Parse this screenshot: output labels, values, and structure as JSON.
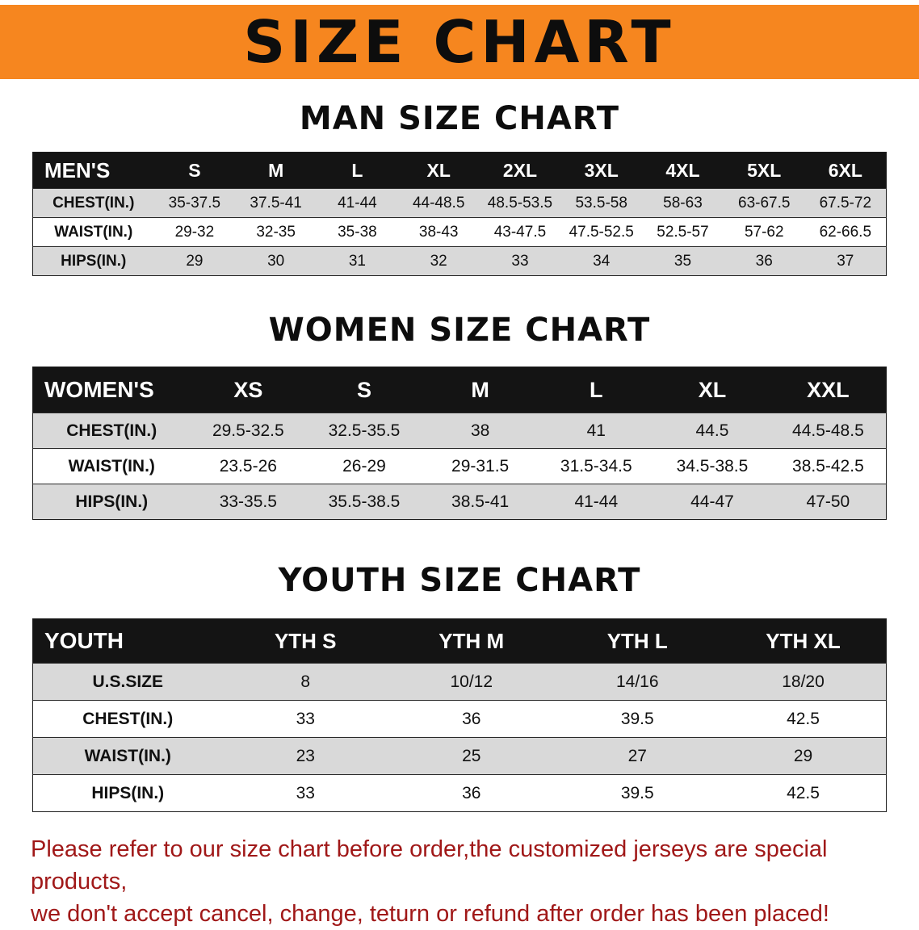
{
  "banner": {
    "title": "SIZE CHART",
    "bg_color": "#F6861F"
  },
  "sections": [
    {
      "heading": "MAN SIZE CHART",
      "table": {
        "label": "MEN'S",
        "columns": [
          "S",
          "M",
          "L",
          "XL",
          "2XL",
          "3XL",
          "4XL",
          "5XL",
          "6XL"
        ],
        "rows": [
          {
            "label": "CHEST(IN.)",
            "values": [
              "35-37.5",
              "37.5-41",
              "41-44",
              "44-48.5",
              "48.5-53.5",
              "53.5-58",
              "58-63",
              "63-67.5",
              "67.5-72"
            ]
          },
          {
            "label": "WAIST(IN.)",
            "values": [
              "29-32",
              "32-35",
              "35-38",
              "38-43",
              "43-47.5",
              "47.5-52.5",
              "52.5-57",
              "57-62",
              "62-66.5"
            ]
          },
          {
            "label": "HIPS(IN.)",
            "values": [
              "29",
              "30",
              "31",
              "32",
              "33",
              "34",
              "35",
              "36",
              "37"
            ]
          }
        ]
      }
    },
    {
      "heading": "WOMEN SIZE CHART",
      "table": {
        "label": "WOMEN'S",
        "columns": [
          "XS",
          "S",
          "M",
          "L",
          "XL",
          "XXL"
        ],
        "rows": [
          {
            "label": "CHEST(IN.)",
            "values": [
              "29.5-32.5",
              "32.5-35.5",
              "38",
              "41",
              "44.5",
              "44.5-48.5"
            ]
          },
          {
            "label": "WAIST(IN.)",
            "values": [
              "23.5-26",
              "26-29",
              "29-31.5",
              "31.5-34.5",
              "34.5-38.5",
              "38.5-42.5"
            ]
          },
          {
            "label": "HIPS(IN.)",
            "values": [
              "33-35.5",
              "35.5-38.5",
              "38.5-41",
              "41-44",
              "44-47",
              "47-50"
            ]
          }
        ]
      }
    },
    {
      "heading": "YOUTH SIZE CHART",
      "table": {
        "label": "YOUTH",
        "columns": [
          "YTH S",
          "YTH M",
          "YTH L",
          "YTH XL"
        ],
        "rows": [
          {
            "label": "U.S.SIZE",
            "values": [
              "8",
              "10/12",
              "14/16",
              "18/20"
            ]
          },
          {
            "label": "CHEST(IN.)",
            "values": [
              "33",
              "36",
              "39.5",
              "42.5"
            ]
          },
          {
            "label": "WAIST(IN.)",
            "values": [
              "23",
              "25",
              "27",
              "29"
            ]
          },
          {
            "label": "HIPS(IN.)",
            "values": [
              "33",
              "36",
              "39.5",
              "42.5"
            ]
          }
        ]
      }
    }
  ],
  "disclaimer": {
    "line1": "Please refer to our size chart before order,the customized jerseys are special products,",
    "line2": "we don't accept cancel, change, teturn or refund after order has been placed!",
    "color": "#A01818"
  }
}
